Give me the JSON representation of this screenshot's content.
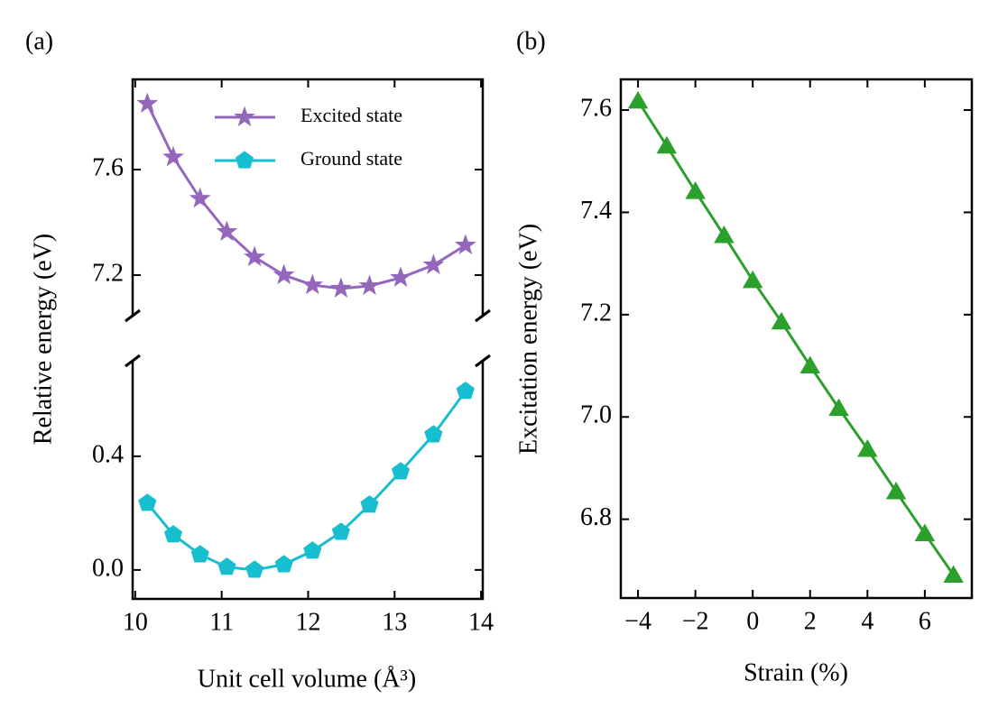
{
  "chart_data": [
    {
      "type": "line",
      "panel_label": "(a)",
      "xlabel": "Unit cell volume (Å³)",
      "ylabel": "Relative energy (eV)",
      "x": [
        10.14,
        10.44,
        10.75,
        11.06,
        11.38,
        11.72,
        12.05,
        12.38,
        12.71,
        13.07,
        13.45,
        13.82
      ],
      "xlim": [
        9.97,
        14.02
      ],
      "xticks": [
        10,
        11,
        12,
        13,
        14
      ],
      "ylim": [
        -0.102,
        0.736
      ],
      "yticks": [
        {
          "value": 0,
          "label": "0.0"
        },
        0.4
      ],
      "ylim_upper": [
        7.046,
        7.942
      ],
      "yticks_upper": [
        7.2,
        7.6
      ],
      "legend": "upper right",
      "series": [
        {
          "name": "Excited state",
          "color": "#9467bd",
          "marker": "star",
          "axis": "upper",
          "values": [
            7.85,
            7.647,
            7.49,
            7.364,
            7.268,
            7.2,
            7.162,
            7.149,
            7.159,
            7.19,
            7.238,
            7.313
          ]
        },
        {
          "name": "Ground state",
          "color": "#17becf",
          "marker": "pentagon",
          "axis": "lower",
          "values": [
            0.235,
            0.124,
            0.054,
            0.01,
            0.0,
            0.019,
            0.067,
            0.133,
            0.229,
            0.346,
            0.476,
            0.629
          ]
        }
      ]
    },
    {
      "type": "line",
      "panel_label": "(b)",
      "xlabel": "Strain (%)",
      "ylabel": "Excitation energy (eV)",
      "x": [
        -4,
        -3,
        -2,
        -1,
        0,
        1,
        2,
        3,
        4,
        5,
        6,
        7
      ],
      "xlim": [
        -4.6,
        7.64
      ],
      "xticks": [
        {
          "value": -4,
          "label": "−4"
        },
        {
          "value": -2,
          "label": "−2"
        },
        0,
        2,
        4,
        6
      ],
      "ylim": [
        6.646,
        7.66
      ],
      "yticks": [
        6.8,
        {
          "value": 7,
          "label": "7.0"
        },
        7.2,
        7.4,
        7.6
      ],
      "series": [
        {
          "name": null,
          "color": "#2ca02c",
          "marker": "triangle",
          "values": [
            7.618,
            7.53,
            7.441,
            7.355,
            7.267,
            7.186,
            7.1,
            7.017,
            6.937,
            6.854,
            6.772,
            6.691
          ]
        }
      ]
    }
  ]
}
